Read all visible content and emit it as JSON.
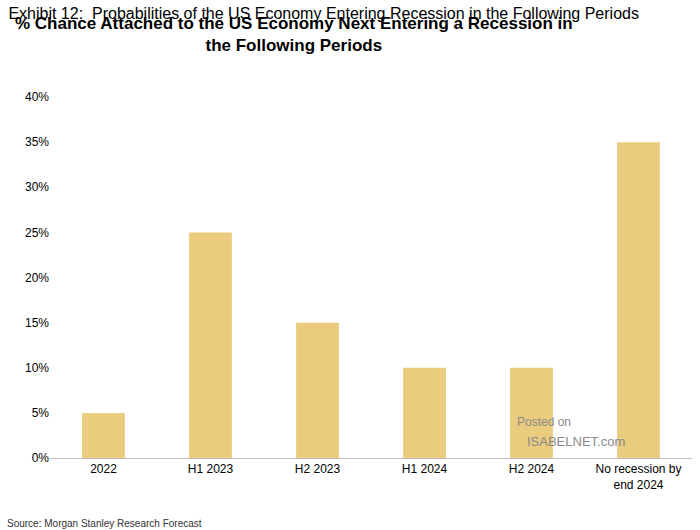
{
  "chart_data": {
    "type": "bar",
    "title": "Exhibit 12:  Probabilities of the US Economy Entering Recession in the Following Periods",
    "subtitle": "% Chance Attached to the US Economy Next Entering a Recession in the Following Periods",
    "source": "Source: Morgan Stanley Research Forecast",
    "annotations": [
      "Posted on",
      "ISABELNET.com"
    ],
    "categories": [
      "2022",
      "H1 2023",
      "H2 2023",
      "H1 2024",
      "H2 2024",
      "No recession by end 2024"
    ],
    "values": [
      5,
      25,
      15,
      10,
      10,
      35
    ],
    "color": "#ebcb7e",
    "ylim": [
      0,
      40
    ],
    "yticks": [
      {
        "value": 0,
        "label": "0%"
      },
      {
        "value": 5,
        "label": "5%"
      },
      {
        "value": 10,
        "label": "10%"
      },
      {
        "value": 15,
        "label": "15%"
      },
      {
        "value": 20,
        "label": "20%"
      },
      {
        "value": 25,
        "label": "25%"
      },
      {
        "value": 30,
        "label": "30%"
      },
      {
        "value": 35,
        "label": "35%"
      },
      {
        "value": 40,
        "label": "40%"
      }
    ],
    "grid": false
  }
}
